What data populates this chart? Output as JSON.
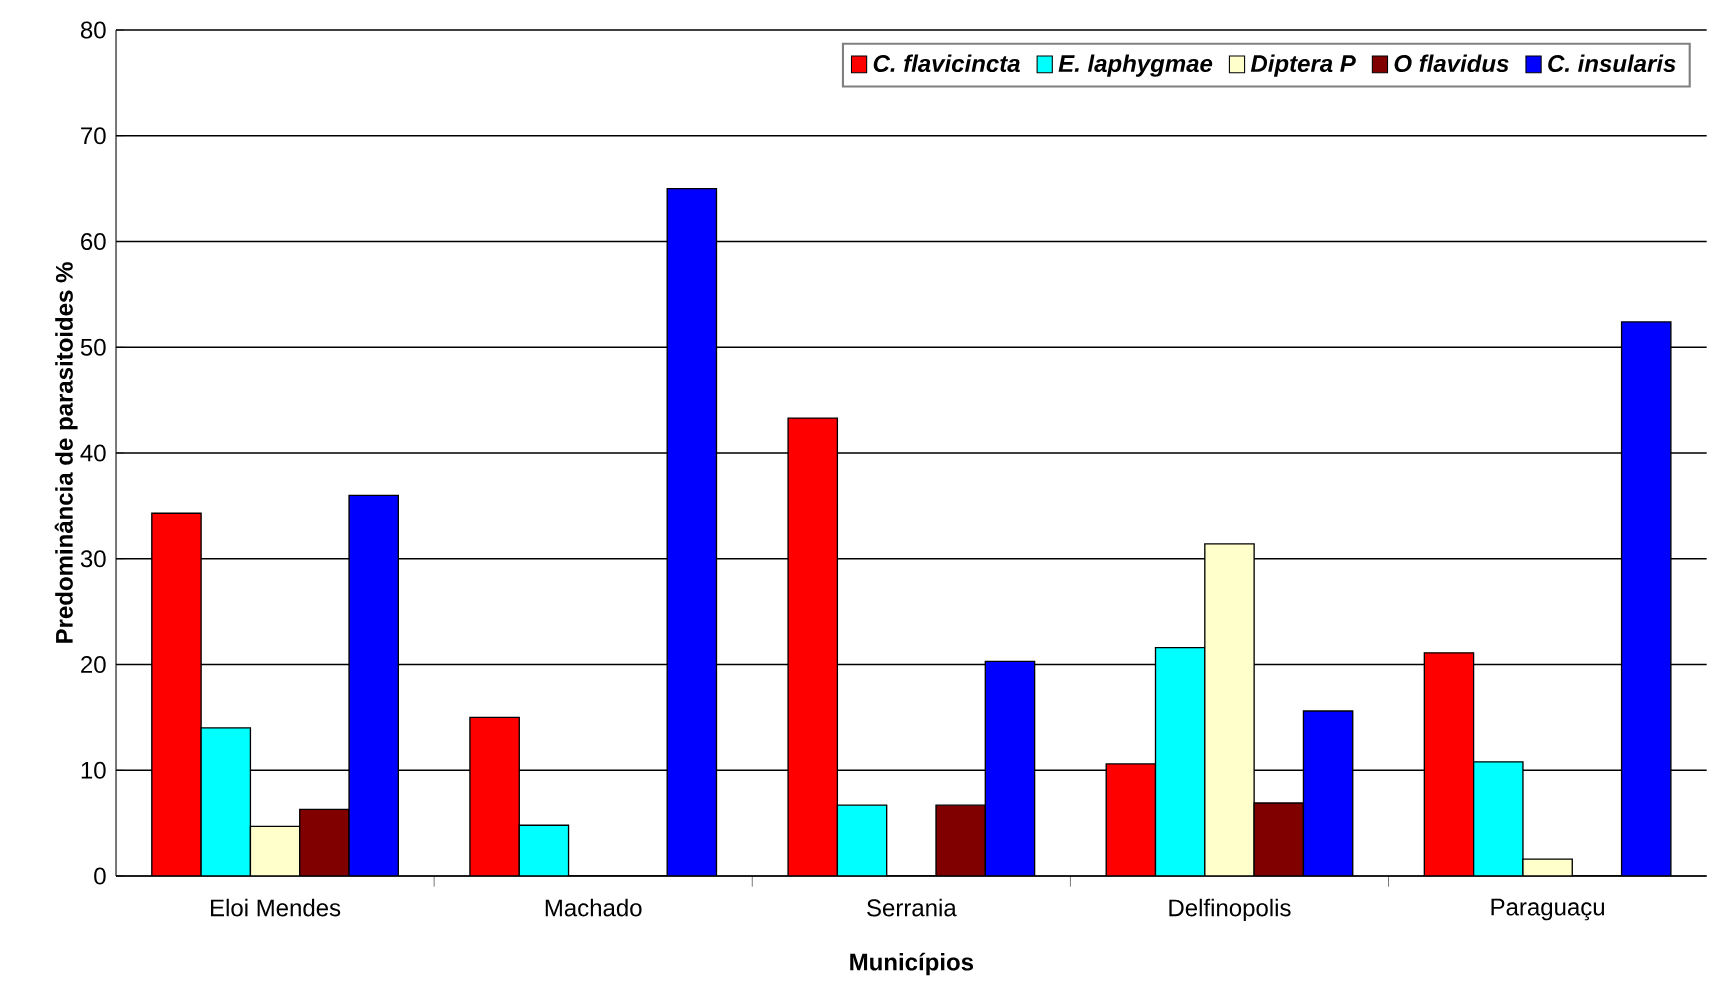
{
  "chart_data": {
    "type": "bar",
    "xlabel": "Municípios",
    "ylabel": "Predominância de parasitoides %",
    "categories": [
      "Eloi Mendes",
      "Machado",
      "Serrania",
      "Delfinopolis",
      "Paraguaçu"
    ],
    "series": [
      {
        "name": "C. flavicincta",
        "color": "#ff0000",
        "values": [
          34.3,
          15,
          43.3,
          10.6,
          21.1
        ]
      },
      {
        "name": "E. laphygmae",
        "color": "#00ffff",
        "values": [
          14,
          4.8,
          6.7,
          21.6,
          10.8
        ]
      },
      {
        "name": "Diptera P",
        "color": "#ffffcc",
        "values": [
          4.7,
          0,
          0,
          31.4,
          1.6
        ]
      },
      {
        "name": "O flavidus",
        "color": "#800000",
        "values": [
          6.3,
          0,
          6.7,
          6.9,
          0
        ]
      },
      {
        "name": "C. insularis",
        "color": "#0000ff",
        "values": [
          36,
          65,
          20.3,
          15.6,
          52.4
        ]
      }
    ],
    "ylim": [
      0,
      80
    ],
    "yticks": [
      0,
      10,
      20,
      30,
      40,
      50,
      60,
      70,
      80
    ],
    "grid": "y",
    "legend": "top right"
  }
}
